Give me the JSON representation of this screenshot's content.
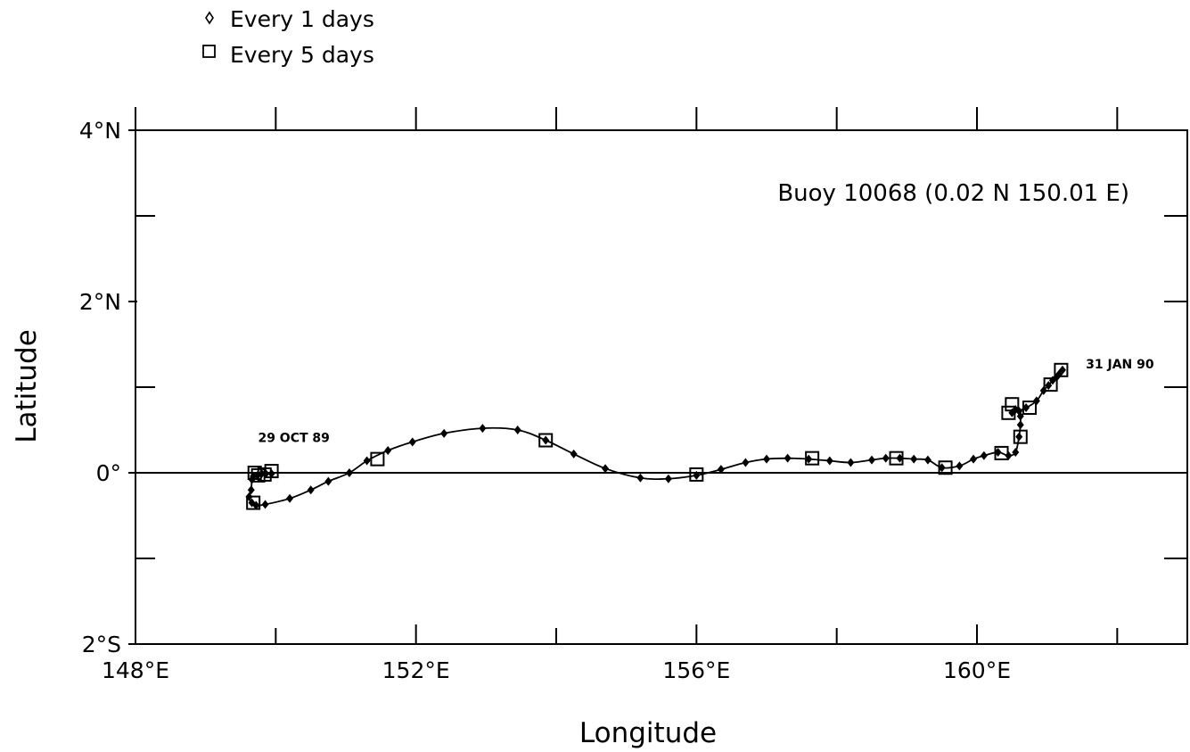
{
  "legend": {
    "items": [
      {
        "symbol": "diamond",
        "label": "Every 1 days"
      },
      {
        "symbol": "square",
        "label": "Every 5 days"
      }
    ]
  },
  "chart_data": {
    "type": "line",
    "title": "",
    "annotation": "Buoy 10068 (0.02 N 150.01 E)",
    "xlabel": "Longitude",
    "ylabel": "Latitude",
    "xlim": [
      148,
      163
    ],
    "ylim": [
      -2,
      4
    ],
    "x_tick_labels": [
      {
        "value": 148,
        "label": "148°E"
      },
      {
        "value": 152,
        "label": "152°E"
      },
      {
        "value": 156,
        "label": "156°E"
      },
      {
        "value": 160,
        "label": "160°E"
      }
    ],
    "x_minor_ticks": [
      150,
      154,
      158,
      162
    ],
    "y_tick_labels": [
      {
        "value": 4,
        "label": "4°N"
      },
      {
        "value": 2,
        "label": "2°N"
      },
      {
        "value": 0,
        "label": "0°"
      },
      {
        "value": -2,
        "label": "2°S"
      }
    ],
    "y_minor_ticks": [
      3,
      1,
      -1
    ],
    "zero_line": true,
    "grid": false,
    "legend_position": "top-left, outside plot",
    "start_label": {
      "text": "29 OCT 89",
      "x": 149.9,
      "y": 0.18
    },
    "end_label": {
      "text": "31 JAN 90",
      "x": 161.4,
      "y": 1.2
    },
    "series": [
      {
        "name": "Every 1 days",
        "marker": "diamond",
        "x": [
          149.94,
          149.86,
          149.8,
          149.74,
          149.68,
          149.66,
          149.65,
          149.62,
          149.66,
          149.72,
          149.85,
          150.2,
          150.5,
          150.75,
          151.05,
          151.3,
          151.6,
          151.95,
          152.4,
          152.95,
          153.45,
          153.85,
          154.25,
          154.7,
          155.2,
          155.6,
          156.0,
          156.35,
          156.7,
          157.0,
          157.3,
          157.6,
          157.9,
          158.2,
          158.5,
          158.7,
          158.9,
          159.1,
          159.3,
          159.5,
          159.75,
          159.95,
          160.1,
          160.3,
          160.45,
          160.55,
          160.6,
          160.62,
          160.62,
          160.6,
          160.55,
          160.5,
          160.7,
          160.85,
          160.95,
          161.02,
          161.08,
          161.14,
          161.18,
          161.22
        ],
        "y": [
          -0.01,
          -0.01,
          -0.01,
          -0.03,
          -0.04,
          -0.08,
          -0.2,
          -0.28,
          -0.35,
          -0.38,
          -0.37,
          -0.3,
          -0.2,
          -0.1,
          0.0,
          0.14,
          0.26,
          0.36,
          0.46,
          0.52,
          0.5,
          0.38,
          0.22,
          0.05,
          -0.06,
          -0.07,
          -0.03,
          0.04,
          0.12,
          0.16,
          0.17,
          0.16,
          0.14,
          0.12,
          0.15,
          0.17,
          0.17,
          0.16,
          0.15,
          0.06,
          0.08,
          0.16,
          0.2,
          0.24,
          0.2,
          0.24,
          0.42,
          0.56,
          0.66,
          0.72,
          0.74,
          0.7,
          0.76,
          0.84,
          0.96,
          1.02,
          1.08,
          1.12,
          1.16,
          1.2
        ]
      },
      {
        "name": "Every 5 days",
        "marker": "square",
        "x": [
          149.94,
          149.84,
          149.75,
          149.7,
          149.68,
          151.45,
          153.85,
          156.0,
          157.65,
          158.85,
          159.55,
          160.35,
          160.45,
          160.5,
          160.62,
          160.75,
          161.05,
          161.2
        ],
        "y": [
          0.02,
          -0.02,
          -0.03,
          0.0,
          -0.35,
          0.16,
          0.38,
          -0.02,
          0.17,
          0.17,
          0.06,
          0.23,
          0.7,
          0.8,
          0.42,
          0.76,
          1.03,
          1.2
        ]
      }
    ]
  }
}
